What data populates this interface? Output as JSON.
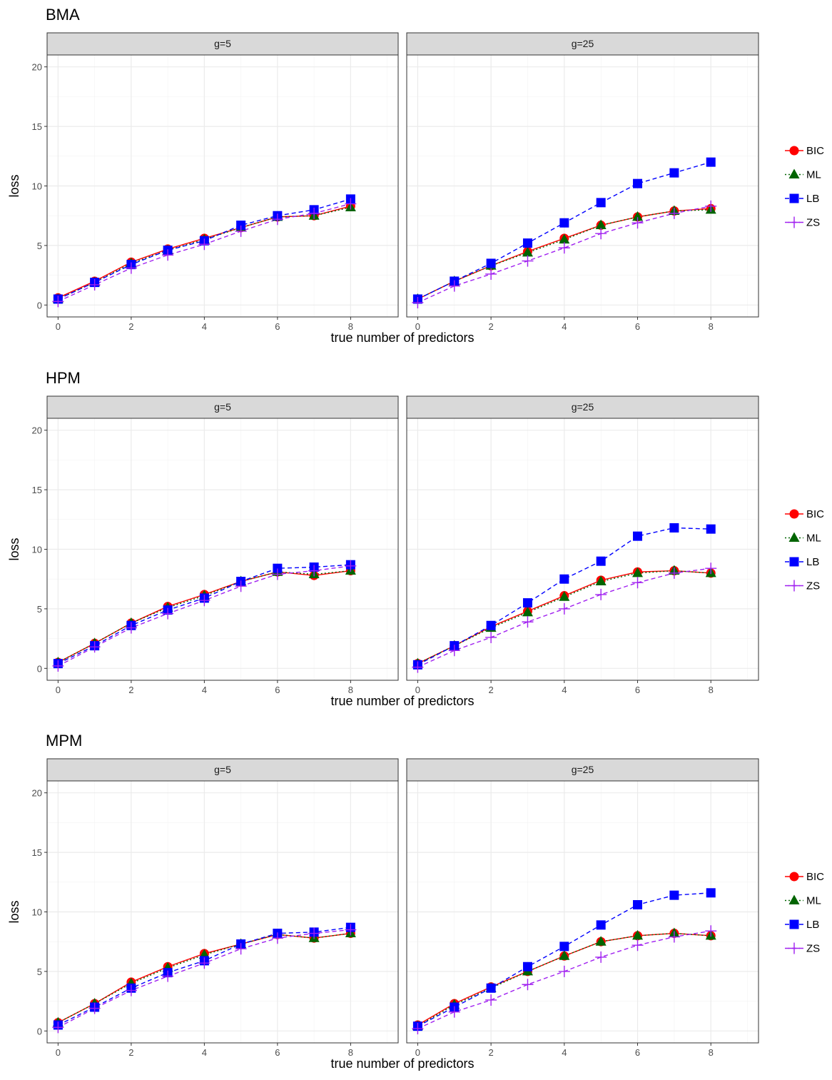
{
  "chart_data": [
    {
      "type": "line",
      "title": "BMA",
      "xlabel": "true number of predictors",
      "ylabel": "loss",
      "ylim": [
        -1,
        21
      ],
      "xlim": [
        -0.3,
        9.3
      ],
      "yticks": [
        0,
        5,
        10,
        15,
        20
      ],
      "xticks": [
        0,
        2,
        4,
        6,
        8
      ],
      "grid": true,
      "legend_position": "right",
      "panels": [
        {
          "label": "g=5",
          "x": [
            0,
            1,
            2,
            3,
            4,
            5,
            6,
            7,
            8
          ],
          "series": [
            {
              "name": "BIC",
              "values": [
                0.6,
                2.0,
                3.6,
                4.7,
                5.6,
                6.5,
                7.4,
                7.5,
                8.3
              ]
            },
            {
              "name": "ML",
              "values": [
                0.5,
                1.9,
                3.5,
                4.6,
                5.5,
                6.5,
                7.4,
                7.5,
                8.2
              ]
            },
            {
              "name": "LB",
              "values": [
                0.5,
                1.9,
                3.4,
                4.6,
                5.4,
                6.7,
                7.5,
                8.0,
                8.9
              ]
            },
            {
              "name": "ZS",
              "values": [
                0.3,
                1.7,
                3.1,
                4.2,
                5.1,
                6.2,
                7.2,
                7.7,
                8.5
              ]
            }
          ]
        },
        {
          "label": "g=25",
          "x": [
            0,
            1,
            2,
            3,
            4,
            5,
            6,
            7,
            8
          ],
          "series": [
            {
              "name": "BIC",
              "values": [
                0.5,
                2.0,
                3.3,
                4.5,
                5.6,
                6.7,
                7.4,
                7.9,
                8.1
              ]
            },
            {
              "name": "ML",
              "values": [
                0.5,
                2.0,
                3.3,
                4.4,
                5.5,
                6.7,
                7.4,
                7.9,
                8.0
              ]
            },
            {
              "name": "LB",
              "values": [
                0.5,
                2.0,
                3.5,
                5.2,
                6.9,
                8.6,
                10.2,
                11.1,
                12.0
              ]
            },
            {
              "name": "ZS",
              "values": [
                0.2,
                1.6,
                2.6,
                3.7,
                4.8,
                6.0,
                6.9,
                7.7,
                8.3
              ]
            }
          ]
        }
      ]
    },
    {
      "type": "line",
      "title": "HPM",
      "xlabel": "true number of predictors",
      "ylabel": "loss",
      "ylim": [
        -1,
        21
      ],
      "xlim": [
        -0.3,
        9.3
      ],
      "yticks": [
        0,
        5,
        10,
        15,
        20
      ],
      "xticks": [
        0,
        2,
        4,
        6,
        8
      ],
      "grid": true,
      "legend_position": "right",
      "panels": [
        {
          "label": "g=5",
          "x": [
            0,
            1,
            2,
            3,
            4,
            5,
            6,
            7,
            8
          ],
          "series": [
            {
              "name": "BIC",
              "values": [
                0.5,
                2.1,
                3.8,
                5.2,
                6.2,
                7.3,
                8.1,
                7.8,
                8.2
              ]
            },
            {
              "name": "ML",
              "values": [
                0.5,
                2.1,
                3.8,
                5.1,
                6.1,
                7.3,
                8.1,
                7.9,
                8.2
              ]
            },
            {
              "name": "LB",
              "values": [
                0.4,
                1.9,
                3.6,
                4.9,
                5.9,
                7.3,
                8.4,
                8.5,
                8.7
              ]
            },
            {
              "name": "ZS",
              "values": [
                0.2,
                1.8,
                3.4,
                4.6,
                5.7,
                6.9,
                7.9,
                8.2,
                8.6
              ]
            }
          ]
        },
        {
          "label": "g=25",
          "x": [
            0,
            1,
            2,
            3,
            4,
            5,
            6,
            7,
            8
          ],
          "series": [
            {
              "name": "BIC",
              "values": [
                0.4,
                1.9,
                3.5,
                4.8,
                6.1,
                7.4,
                8.1,
                8.2,
                8.0
              ]
            },
            {
              "name": "ML",
              "values": [
                0.4,
                1.9,
                3.4,
                4.7,
                6.0,
                7.3,
                8.0,
                8.2,
                8.0
              ]
            },
            {
              "name": "LB",
              "values": [
                0.3,
                1.9,
                3.6,
                5.5,
                7.5,
                9.0,
                11.1,
                11.8,
                11.7
              ]
            },
            {
              "name": "ZS",
              "values": [
                0.1,
                1.5,
                2.6,
                3.9,
                5.0,
                6.2,
                7.2,
                8.0,
                8.4
              ]
            }
          ]
        }
      ]
    },
    {
      "type": "line",
      "title": "MPM",
      "xlabel": "true number of predictors",
      "ylabel": "loss",
      "ylim": [
        -1,
        21
      ],
      "xlim": [
        -0.3,
        9.3
      ],
      "yticks": [
        0,
        5,
        10,
        15,
        20
      ],
      "xticks": [
        0,
        2,
        4,
        6,
        8
      ],
      "grid": true,
      "legend_position": "right",
      "panels": [
        {
          "label": "g=5",
          "x": [
            0,
            1,
            2,
            3,
            4,
            5,
            6,
            7,
            8
          ],
          "series": [
            {
              "name": "BIC",
              "values": [
                0.7,
                2.3,
                4.1,
                5.4,
                6.5,
                7.3,
                8.1,
                7.8,
                8.2
              ]
            },
            {
              "name": "ML",
              "values": [
                0.7,
                2.3,
                4.0,
                5.3,
                6.4,
                7.3,
                8.1,
                7.8,
                8.2
              ]
            },
            {
              "name": "LB",
              "values": [
                0.5,
                2.0,
                3.6,
                4.9,
                5.9,
                7.3,
                8.2,
                8.3,
                8.7
              ]
            },
            {
              "name": "ZS",
              "values": [
                0.3,
                1.9,
                3.4,
                4.6,
                5.7,
                6.9,
                7.8,
                8.2,
                8.5
              ]
            }
          ]
        },
        {
          "label": "g=25",
          "x": [
            0,
            1,
            2,
            3,
            4,
            5,
            6,
            7,
            8
          ],
          "series": [
            {
              "name": "BIC",
              "values": [
                0.5,
                2.3,
                3.7,
                5.0,
                6.3,
                7.5,
                8.0,
                8.2,
                8.0
              ]
            },
            {
              "name": "ML",
              "values": [
                0.4,
                2.2,
                3.6,
                5.0,
                6.3,
                7.5,
                8.0,
                8.2,
                8.0
              ]
            },
            {
              "name": "LB",
              "values": [
                0.4,
                2.0,
                3.6,
                5.4,
                7.1,
                8.9,
                10.6,
                11.4,
                11.6
              ]
            },
            {
              "name": "ZS",
              "values": [
                0.2,
                1.6,
                2.6,
                3.9,
                5.0,
                6.2,
                7.2,
                7.9,
                8.4
              ]
            }
          ]
        }
      ]
    }
  ],
  "legend": [
    {
      "name": "BIC",
      "color": "#ff0000",
      "shape": "circle",
      "dash": "solid"
    },
    {
      "name": "ML",
      "color": "#006400",
      "shape": "triangle",
      "dash": "dotted"
    },
    {
      "name": "LB",
      "color": "#0000ff",
      "shape": "square",
      "dash": "dashed"
    },
    {
      "name": "ZS",
      "color": "#a020f0",
      "shape": "plus",
      "dash": "dashed"
    }
  ]
}
